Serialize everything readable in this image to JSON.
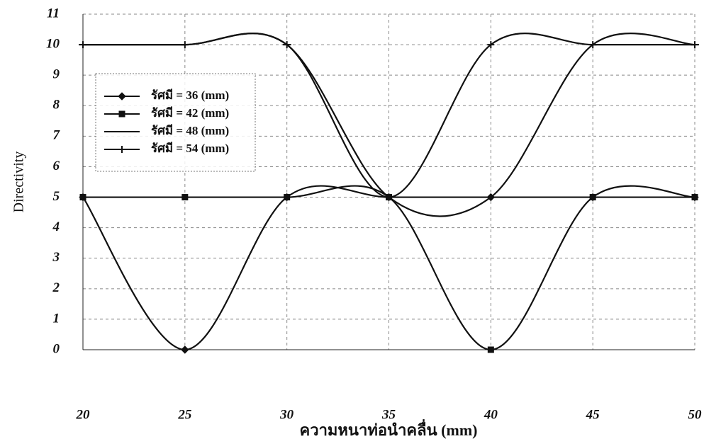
{
  "chart_data": {
    "type": "line",
    "x_label": "ความหนาท่อนำคลื่น (mm)",
    "y_label": "Directivity",
    "x": [
      20,
      25,
      30,
      35,
      40,
      45,
      50
    ],
    "series": [
      {
        "name": "รัศมี = 36 (mm)",
        "color": "#111111",
        "marker": "diamond",
        "values": [
          5,
          0,
          5,
          5,
          5,
          5,
          5
        ]
      },
      {
        "name": "รัศมี = 42 (mm)",
        "color": "#111111",
        "marker": "square",
        "values": [
          5,
          5,
          5,
          5,
          0,
          5,
          5
        ]
      },
      {
        "name": "รัศมี = 48 (mm)",
        "color": "#111111",
        "marker": "dash",
        "values": [
          10,
          10,
          10,
          5,
          5,
          10,
          10
        ]
      },
      {
        "name": "รัศมี = 54 (mm)",
        "color": "#111111",
        "marker": "plus",
        "values": [
          10,
          10,
          10,
          5,
          10,
          10,
          10
        ]
      }
    ],
    "xlim": [
      20,
      50
    ],
    "xticks": [
      20,
      25,
      30,
      35,
      40,
      45,
      50
    ],
    "ylim": [
      0,
      11
    ],
    "yticks": [
      0,
      1,
      2,
      3,
      4,
      5,
      6,
      7,
      8,
      9,
      10,
      11
    ],
    "grid": true,
    "smooth": true,
    "legend": "upper left"
  }
}
